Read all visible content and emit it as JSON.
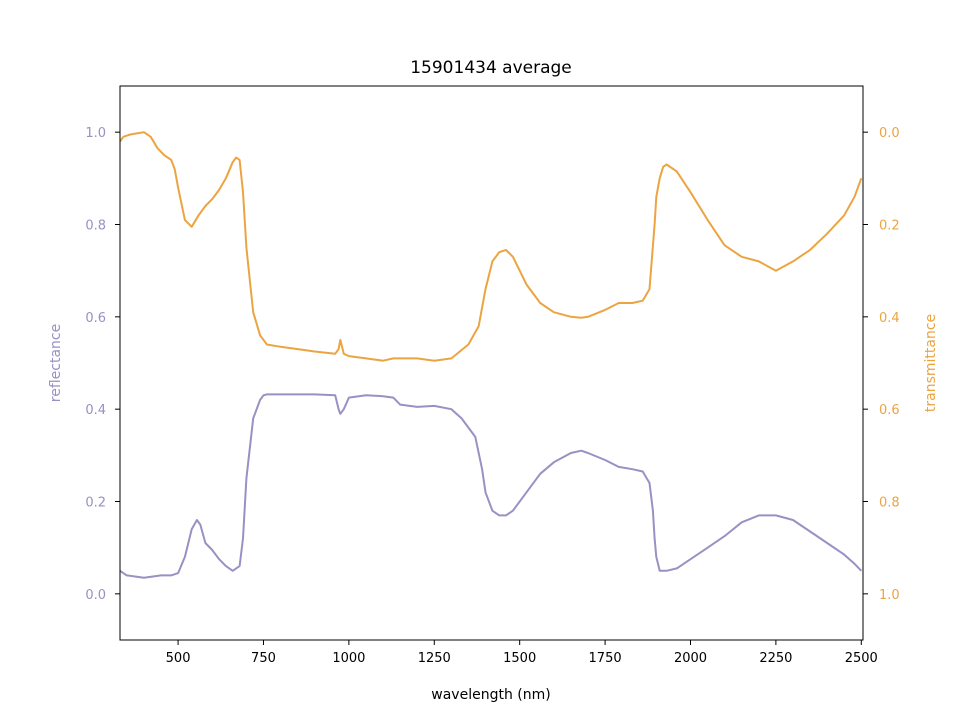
{
  "chart_data": {
    "type": "line",
    "title": "15901434 average",
    "xlabel": "wavelength (nm)",
    "ylabel_left": "reflectance",
    "ylabel_right": "transmittance",
    "xlim": [
      330,
      2505
    ],
    "ylim_left": [
      -0.1,
      1.1
    ],
    "ylim_right": [
      1.1,
      -0.1
    ],
    "right_axis_inverted": true,
    "grid": false,
    "legend": "none",
    "x_ticks": [
      500,
      750,
      1000,
      1250,
      1500,
      1750,
      2000,
      2250,
      2500
    ],
    "y_ticks_left": [
      0.0,
      0.2,
      0.4,
      0.6,
      0.8,
      1.0
    ],
    "y_ticks_right": [
      0.0,
      0.2,
      0.4,
      0.6,
      0.8,
      1.0
    ],
    "colors": {
      "reflectance": "#9990c4",
      "transmittance": "#eca441"
    },
    "series": [
      {
        "name": "reflectance",
        "axis": "left",
        "x": [
          330,
          350,
          400,
          450,
          480,
          500,
          520,
          540,
          555,
          565,
          580,
          600,
          620,
          640,
          660,
          680,
          690,
          700,
          720,
          740,
          750,
          760,
          800,
          900,
          960,
          970,
          975,
          985,
          1000,
          1050,
          1100,
          1130,
          1150,
          1200,
          1250,
          1300,
          1330,
          1370,
          1390,
          1400,
          1420,
          1440,
          1460,
          1480,
          1520,
          1560,
          1600,
          1650,
          1680,
          1700,
          1750,
          1790,
          1830,
          1860,
          1880,
          1890,
          1895,
          1900,
          1905,
          1910,
          1930,
          1960,
          2000,
          2050,
          2100,
          2150,
          2200,
          2250,
          2300,
          2350,
          2400,
          2450,
          2480,
          2500
        ],
        "y": [
          0.05,
          0.04,
          0.035,
          0.04,
          0.04,
          0.045,
          0.08,
          0.14,
          0.16,
          0.15,
          0.11,
          0.095,
          0.075,
          0.06,
          0.05,
          0.06,
          0.12,
          0.25,
          0.38,
          0.42,
          0.43,
          0.432,
          0.432,
          0.432,
          0.43,
          0.4,
          0.39,
          0.4,
          0.425,
          0.43,
          0.428,
          0.425,
          0.41,
          0.405,
          0.407,
          0.4,
          0.38,
          0.34,
          0.27,
          0.22,
          0.18,
          0.17,
          0.17,
          0.18,
          0.22,
          0.26,
          0.285,
          0.305,
          0.31,
          0.305,
          0.29,
          0.275,
          0.27,
          0.265,
          0.24,
          0.18,
          0.12,
          0.08,
          0.065,
          0.05,
          0.05,
          0.055,
          0.075,
          0.1,
          0.125,
          0.155,
          0.17,
          0.17,
          0.16,
          0.135,
          0.11,
          0.085,
          0.065,
          0.05
        ]
      },
      {
        "name": "transmittance",
        "axis": "right",
        "x": [
          330,
          340,
          360,
          400,
          420,
          440,
          460,
          470,
          480,
          490,
          500,
          520,
          540,
          560,
          580,
          600,
          620,
          640,
          660,
          670,
          680,
          690,
          700,
          720,
          740,
          760,
          800,
          900,
          960,
          970,
          975,
          985,
          1000,
          1050,
          1100,
          1130,
          1150,
          1200,
          1250,
          1300,
          1350,
          1380,
          1400,
          1420,
          1440,
          1460,
          1480,
          1520,
          1560,
          1600,
          1650,
          1680,
          1700,
          1750,
          1790,
          1830,
          1860,
          1880,
          1895,
          1900,
          1905,
          1910,
          1920,
          1930,
          1960,
          2000,
          2050,
          2100,
          2150,
          2200,
          2250,
          2300,
          2350,
          2400,
          2450,
          2480,
          2500
        ],
        "y": [
          0.02,
          0.01,
          0.005,
          0.0,
          0.01,
          0.035,
          0.05,
          0.055,
          0.06,
          0.08,
          0.12,
          0.19,
          0.205,
          0.18,
          0.16,
          0.145,
          0.125,
          0.1,
          0.065,
          0.055,
          0.06,
          0.13,
          0.25,
          0.39,
          0.44,
          0.46,
          0.465,
          0.475,
          0.48,
          0.47,
          0.45,
          0.48,
          0.485,
          0.49,
          0.495,
          0.49,
          0.49,
          0.49,
          0.495,
          0.49,
          0.46,
          0.42,
          0.34,
          0.28,
          0.26,
          0.255,
          0.27,
          0.33,
          0.37,
          0.39,
          0.4,
          0.402,
          0.4,
          0.385,
          0.37,
          0.37,
          0.365,
          0.34,
          0.2,
          0.14,
          0.12,
          0.1,
          0.075,
          0.07,
          0.085,
          0.13,
          0.19,
          0.245,
          0.27,
          0.28,
          0.3,
          0.28,
          0.255,
          0.22,
          0.18,
          0.14,
          0.1
        ]
      }
    ]
  }
}
